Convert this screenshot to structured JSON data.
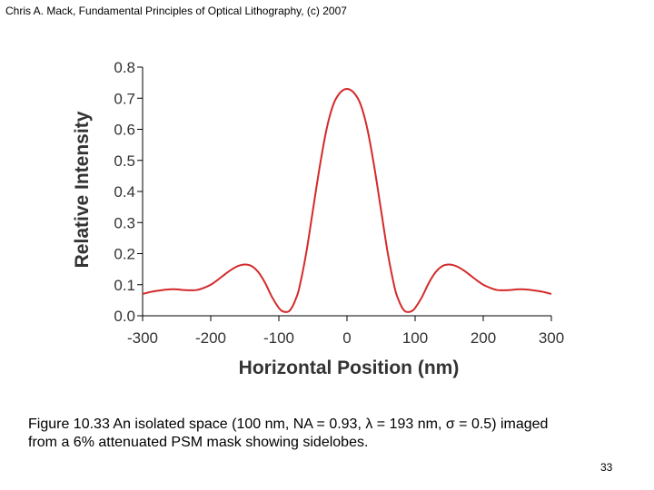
{
  "header": {
    "text": "Chris A. Mack, Fundamental Principles of Optical Lithography, (c) 2007"
  },
  "chart_data": {
    "type": "line",
    "title": "",
    "xlabel": "Horizontal Position (nm)",
    "ylabel": "Relative Intensity",
    "xlim": [
      -300,
      300
    ],
    "ylim": [
      0,
      0.8
    ],
    "x_ticks": [
      -300,
      -200,
      -100,
      0,
      100,
      200,
      300
    ],
    "y_ticks": [
      0.0,
      0.1,
      0.2,
      0.3,
      0.4,
      0.5,
      0.6,
      0.7,
      0.8
    ],
    "x_tick_labels": [
      "-300",
      "-200",
      "-100",
      "0",
      "100",
      "200",
      "300"
    ],
    "y_tick_labels": [
      "0.0",
      "0.1",
      "0.2",
      "0.3",
      "0.4",
      "0.5",
      "0.6",
      "0.7",
      "0.8"
    ],
    "grid": false,
    "series": [
      {
        "name": "Intensity",
        "color": "#d42a2a",
        "x": [
          -300,
          -290,
          -280,
          -270,
          -260,
          -250,
          -240,
          -230,
          -220,
          -210,
          -200,
          -190,
          -180,
          -170,
          -160,
          -150,
          -140,
          -130,
          -120,
          -110,
          -100,
          -95,
          -90,
          -85,
          -80,
          -75,
          -70,
          -60,
          -50,
          -40,
          -30,
          -20,
          -10,
          0,
          10,
          20,
          30,
          40,
          50,
          60,
          70,
          75,
          80,
          85,
          90,
          95,
          100,
          110,
          120,
          130,
          140,
          150,
          160,
          170,
          180,
          190,
          200,
          210,
          220,
          230,
          240,
          250,
          260,
          270,
          280,
          290,
          300
        ],
        "y": [
          0.07,
          0.076,
          0.08,
          0.083,
          0.085,
          0.085,
          0.083,
          0.082,
          0.083,
          0.09,
          0.1,
          0.115,
          0.132,
          0.148,
          0.16,
          0.165,
          0.16,
          0.14,
          0.105,
          0.06,
          0.025,
          0.015,
          0.012,
          0.015,
          0.03,
          0.055,
          0.09,
          0.2,
          0.34,
          0.48,
          0.6,
          0.68,
          0.718,
          0.73,
          0.718,
          0.68,
          0.6,
          0.48,
          0.34,
          0.2,
          0.09,
          0.055,
          0.03,
          0.015,
          0.012,
          0.015,
          0.025,
          0.06,
          0.105,
          0.14,
          0.16,
          0.165,
          0.16,
          0.148,
          0.132,
          0.115,
          0.1,
          0.09,
          0.083,
          0.082,
          0.083,
          0.085,
          0.085,
          0.083,
          0.08,
          0.076,
          0.07
        ]
      }
    ]
  },
  "caption": {
    "line1": "Figure 10.33  An isolated space (100 nm, NA = 0.93, λ = 193 nm, σ = 0.5) imaged",
    "line2": "from a 6% attenuated PSM mask showing sidelobes."
  },
  "page_number": "33"
}
